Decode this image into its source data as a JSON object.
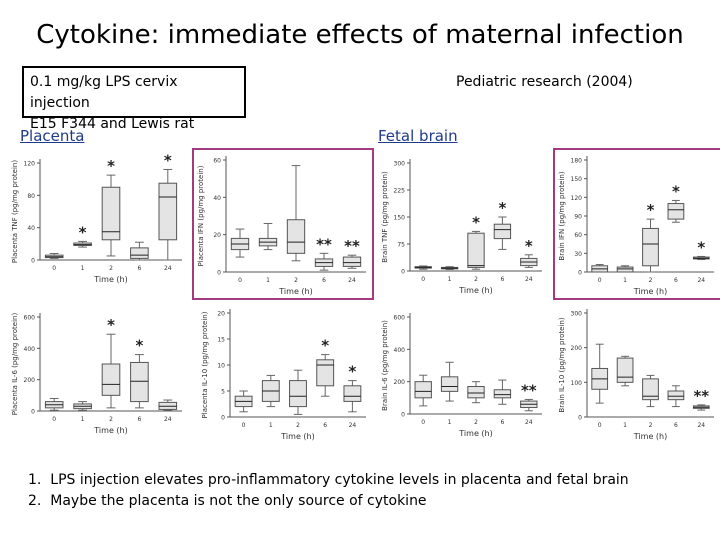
{
  "slide": {
    "title": "Cytokine: immediate effects of maternal infection",
    "infobox": {
      "line1": "0.1 mg/kg LPS cervix injection",
      "line2": "E15 F344 and Lewis rat"
    },
    "citation": "Pediatric research (2004)",
    "section_placenta": "Placenta",
    "section_fetal_brain": "Fetal brain",
    "notes": [
      {
        "num": "1.",
        "text": "LPS injection elevates pro-inflammatory cytokine levels in placenta and fetal brain"
      },
      {
        "num": "2.",
        "text": "Maybe the placenta is not the only source of cytokine"
      }
    ]
  },
  "chart_data": [
    {
      "type": "box",
      "panel": "placenta-tnf",
      "ylabel": "Placenta TNF (pg/mg protein)",
      "xlabel": "Time (h)",
      "ylim": [
        0,
        120
      ],
      "ticks": [
        0,
        40,
        80,
        120
      ],
      "categories": [
        "0",
        "1",
        "2",
        "6",
        "24"
      ],
      "boxes": [
        [
          2,
          3,
          4,
          6,
          8
        ],
        [
          16,
          18,
          19,
          21,
          23
        ],
        [
          5,
          25,
          35,
          90,
          105
        ],
        [
          0,
          2,
          6,
          15,
          22
        ],
        [
          0,
          25,
          78,
          95,
          112
        ]
      ],
      "annotations": [
        "",
        "*",
        "*",
        "",
        "*"
      ]
    },
    {
      "type": "box",
      "panel": "placenta-ifn",
      "ylabel": "Placenta IFN (pg/mg protein)",
      "xlabel": "Time (h)",
      "ylim": [
        0,
        60
      ],
      "ticks": [
        0,
        20,
        40,
        60
      ],
      "categories": [
        "0",
        "1",
        "2",
        "6",
        "24"
      ],
      "boxes": [
        [
          8,
          12,
          15,
          18,
          23
        ],
        [
          12,
          14,
          16,
          18,
          26
        ],
        [
          6,
          10,
          16,
          28,
          57
        ],
        [
          1,
          3,
          5,
          7,
          10
        ],
        [
          2,
          3,
          5,
          8,
          9
        ]
      ],
      "annotations": [
        "",
        "",
        "",
        "**",
        "**"
      ]
    },
    {
      "type": "box",
      "panel": "brain-tnf",
      "ylabel": "Brain TNF (pg/mg protein)",
      "xlabel": "Time (h)",
      "ylim": [
        0,
        300
      ],
      "ticks": [
        0,
        75,
        150,
        225,
        300
      ],
      "categories": [
        "0",
        "1",
        "2",
        "6",
        "24"
      ],
      "boxes": [
        [
          5,
          8,
          10,
          12,
          14
        ],
        [
          4,
          6,
          8,
          10,
          12
        ],
        [
          5,
          10,
          15,
          105,
          110
        ],
        [
          60,
          90,
          115,
          130,
          150
        ],
        [
          10,
          15,
          25,
          35,
          45
        ]
      ],
      "annotations": [
        "",
        "",
        "*",
        "*",
        "*"
      ]
    },
    {
      "type": "box",
      "panel": "brain-ifn",
      "ylabel": "Brain IFN (pg/mg protein)",
      "xlabel": "Time (h)",
      "ylim": [
        0,
        180
      ],
      "ticks": [
        0,
        30,
        60,
        90,
        120,
        150,
        180
      ],
      "categories": [
        "0",
        "1",
        "2",
        "6",
        "24"
      ],
      "boxes": [
        [
          0,
          0,
          5,
          10,
          12
        ],
        [
          0,
          0,
          5,
          8,
          10
        ],
        [
          0,
          10,
          45,
          70,
          85
        ],
        [
          80,
          85,
          100,
          110,
          115
        ],
        [
          20,
          21,
          22,
          24,
          25
        ]
      ],
      "annotations": [
        "",
        "",
        "*",
        "*",
        "*"
      ]
    },
    {
      "type": "box",
      "panel": "placenta-il6",
      "ylabel": "Placenta IL-6 (pg/mg protein)",
      "xlabel": "Time (h)",
      "ylim": [
        0,
        600
      ],
      "ticks": [
        0,
        200,
        400,
        600
      ],
      "categories": [
        "0",
        "1",
        "2",
        "6",
        "24"
      ],
      "boxes": [
        [
          5,
          20,
          40,
          60,
          80
        ],
        [
          5,
          15,
          30,
          45,
          60
        ],
        [
          20,
          100,
          170,
          300,
          490
        ],
        [
          20,
          60,
          190,
          310,
          360
        ],
        [
          5,
          10,
          30,
          55,
          70
        ]
      ],
      "annotations": [
        "",
        "",
        "*",
        "*",
        ""
      ]
    },
    {
      "type": "box",
      "panel": "placenta-il10",
      "ylabel": "Placenta IL-10 (pg/mg protein)",
      "xlabel": "Time (h)",
      "ylim": [
        0,
        20
      ],
      "ticks": [
        0,
        5,
        10,
        15,
        20
      ],
      "categories": [
        "0",
        "1",
        "2",
        "6",
        "24"
      ],
      "boxes": [
        [
          1,
          2,
          3,
          4,
          5
        ],
        [
          2,
          3,
          5,
          7,
          8
        ],
        [
          0.5,
          2,
          4,
          7,
          9
        ],
        [
          4,
          6,
          10,
          11,
          12
        ],
        [
          1,
          3,
          4,
          6,
          7
        ]
      ],
      "annotations": [
        "",
        "",
        "",
        "*",
        "*"
      ]
    },
    {
      "type": "box",
      "panel": "brain-il6",
      "ylabel": "Brain IL-6 (pg/mg protein)",
      "xlabel": "Time (h)",
      "ylim": [
        0,
        600
      ],
      "ticks": [
        0,
        200,
        400,
        600
      ],
      "categories": [
        "0",
        "1",
        "2",
        "6",
        "24"
      ],
      "boxes": [
        [
          50,
          100,
          140,
          200,
          240
        ],
        [
          80,
          140,
          170,
          230,
          320
        ],
        [
          70,
          100,
          130,
          170,
          200
        ],
        [
          60,
          100,
          120,
          150,
          210
        ],
        [
          20,
          40,
          60,
          80,
          90
        ]
      ],
      "annotations": [
        "",
        "",
        "",
        "",
        "**"
      ]
    },
    {
      "type": "box",
      "panel": "brain-il10",
      "ylabel": "Brain IL-10 (pg/mg protein)",
      "xlabel": "Time (h)",
      "ylim": [
        0,
        300
      ],
      "ticks": [
        0,
        100,
        200,
        300
      ],
      "categories": [
        "0",
        "1",
        "2",
        "6",
        "24"
      ],
      "boxes": [
        [
          40,
          80,
          110,
          140,
          210
        ],
        [
          90,
          100,
          115,
          170,
          175
        ],
        [
          30,
          50,
          60,
          110,
          120
        ],
        [
          30,
          50,
          60,
          75,
          90
        ],
        [
          20,
          25,
          28,
          32,
          35
        ]
      ],
      "annotations": [
        "",
        "",
        "",
        "",
        "**"
      ]
    }
  ]
}
